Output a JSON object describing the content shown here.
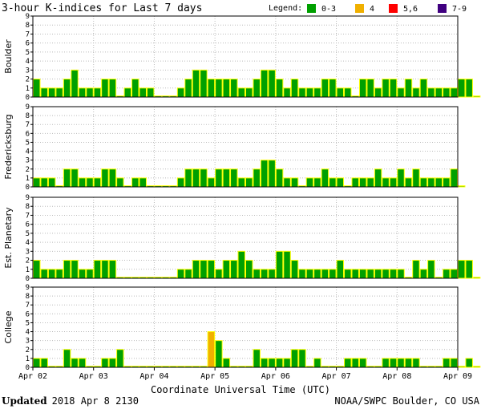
{
  "header": {
    "title": "3-hour K-indices for Last 7 days",
    "legend_title": "Legend:",
    "legend": [
      {
        "label": "0-3",
        "color": "#00a000"
      },
      {
        "label": "4",
        "color": "#f0b000"
      },
      {
        "label": "5,6",
        "color": "#ff0000"
      },
      {
        "label": "7-9",
        "color": "#400080"
      }
    ]
  },
  "footer": {
    "updated_label": "Updated",
    "updated_value": "2018 Apr  8 2130",
    "credit": "NOAA/SWPC Boulder, CO USA"
  },
  "colors": {
    "bar_edge": "#ffff00",
    "frame": "#000000",
    "grid": "#bbbbbb"
  },
  "chart_data": {
    "type": "bar",
    "title": "3-hour K-indices for Last 7 days",
    "xlabel": "Coordinate Universal Time (UTC)",
    "x_ticks": [
      "Apr 02",
      "Apr 03",
      "Apr 04",
      "Apr 05",
      "Apr 06",
      "Apr 07",
      "Apr 08",
      "Apr 09"
    ],
    "ylim": [
      0,
      9
    ],
    "y_ticks": [
      "0",
      "1",
      "2",
      "3",
      "4",
      "5",
      "6",
      "7",
      "8",
      "9"
    ],
    "bars_per_day": 8,
    "series": [
      {
        "name": "Boulder",
        "values": [
          2,
          1,
          1,
          1,
          2,
          3,
          1,
          1,
          1,
          2,
          2,
          0,
          1,
          2,
          1,
          1,
          0,
          0,
          0,
          1,
          2,
          3,
          3,
          2,
          2,
          2,
          2,
          1,
          1,
          2,
          3,
          3,
          2,
          1,
          2,
          1,
          1,
          1,
          2,
          2,
          1,
          1,
          0,
          2,
          2,
          1,
          2,
          2,
          1,
          2,
          1,
          2,
          1,
          1,
          1,
          1,
          2,
          2,
          0
        ]
      },
      {
        "name": "Fredericksburg",
        "values": [
          1,
          1,
          1,
          0,
          2,
          2,
          1,
          1,
          1,
          2,
          2,
          1,
          0,
          1,
          1,
          0,
          0,
          0,
          0,
          1,
          2,
          2,
          2,
          1,
          2,
          2,
          2,
          1,
          1,
          2,
          3,
          3,
          2,
          1,
          1,
          0,
          1,
          1,
          2,
          1,
          1,
          0,
          1,
          1,
          1,
          2,
          1,
          1,
          2,
          1,
          2,
          1,
          1,
          1,
          1,
          2,
          0
        ]
      },
      {
        "name": "Est. Planetary",
        "values": [
          2,
          1,
          1,
          1,
          2,
          2,
          1,
          1,
          2,
          2,
          2,
          0,
          0,
          0,
          0,
          0,
          0,
          0,
          0,
          1,
          1,
          2,
          2,
          2,
          1,
          2,
          2,
          3,
          2,
          1,
          1,
          1,
          3,
          3,
          2,
          1,
          1,
          1,
          1,
          1,
          2,
          1,
          1,
          1,
          1,
          1,
          1,
          1,
          1,
          0,
          2,
          1,
          2,
          0,
          1,
          1,
          2,
          2,
          0
        ]
      },
      {
        "name": "College",
        "values": [
          1,
          1,
          0,
          0,
          2,
          1,
          1,
          0,
          0,
          1,
          1,
          2,
          0,
          0,
          0,
          0,
          0,
          0,
          0,
          0,
          0,
          0,
          0,
          4,
          3,
          1,
          0,
          0,
          0,
          2,
          1,
          1,
          1,
          1,
          2,
          2,
          0,
          1,
          0,
          0,
          0,
          1,
          1,
          1,
          0,
          0,
          1,
          1,
          1,
          1,
          1,
          0,
          0,
          0,
          1,
          1,
          0,
          1,
          0
        ]
      }
    ]
  }
}
